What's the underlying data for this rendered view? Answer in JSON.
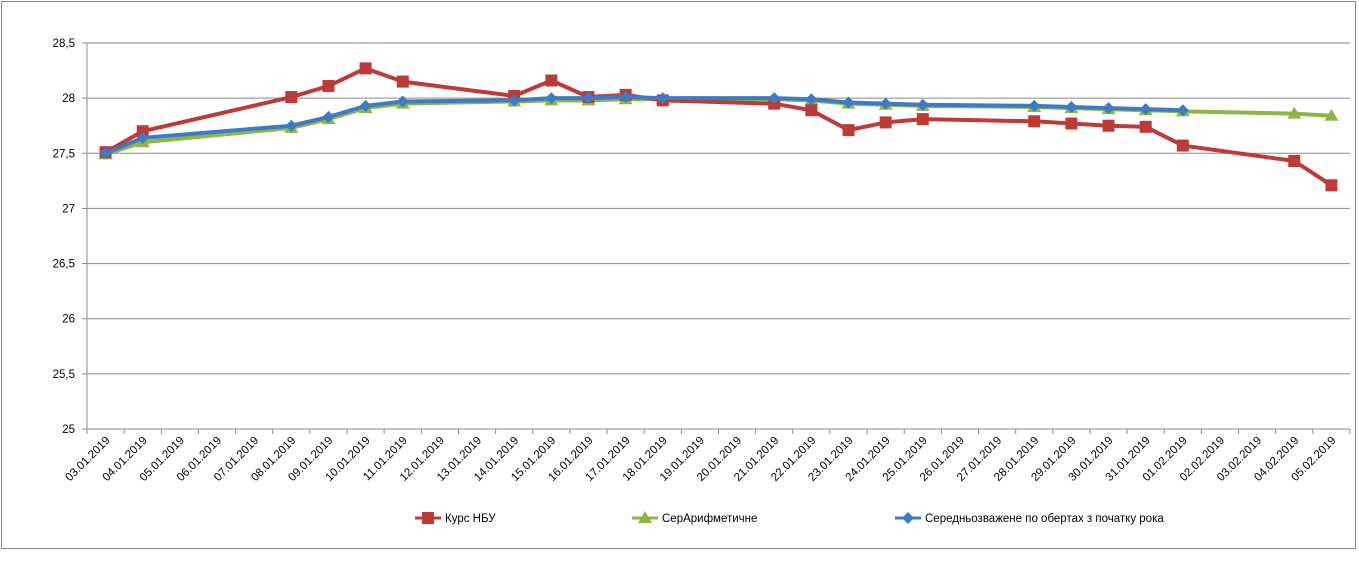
{
  "chart_data": {
    "type": "line",
    "title": "",
    "xlabel": "",
    "ylabel": "",
    "ylim": [
      25,
      28.5
    ],
    "yticks": [
      "25",
      "25,5",
      "26",
      "26,5",
      "27",
      "27,5",
      "28",
      "28,5"
    ],
    "ytick_values": [
      25,
      25.5,
      26,
      26.5,
      27,
      27.5,
      28,
      28.5
    ],
    "grid": true,
    "legend_position": "bottom",
    "categories": [
      "03.01.2019",
      "04.01.2019",
      "05.01.2019",
      "06.01.2019",
      "07.01.2019",
      "08.01.2019",
      "09.01.2019",
      "10.01.2019",
      "11.01.2019",
      "12.01.2019",
      "13.01.2019",
      "14.01.2019",
      "15.01.2019",
      "16.01.2019",
      "17.01.2019",
      "18.01.2019",
      "19.01.2019",
      "20.01.2019",
      "21.01.2019",
      "22.01.2019",
      "23.01.2019",
      "24.01.2019",
      "25.01.2019",
      "26.01.2019",
      "27.01.2019",
      "28.01.2019",
      "29.01.2019",
      "30.01.2019",
      "31.01.2019",
      "01.02.2019",
      "02.02.2019",
      "03.02.2019",
      "04.02.2019",
      "05.02.2019"
    ],
    "series": [
      {
        "name": "Курс НБУ",
        "color": "#be3a36",
        "marker": "square",
        "values": [
          27.51,
          27.7,
          null,
          null,
          null,
          28.01,
          28.11,
          28.27,
          28.15,
          null,
          null,
          28.02,
          28.16,
          28.01,
          28.03,
          27.98,
          null,
          null,
          27.95,
          27.89,
          27.71,
          27.78,
          27.81,
          null,
          null,
          27.79,
          27.77,
          27.75,
          27.74,
          27.57,
          null,
          null,
          27.43,
          27.21
        ]
      },
      {
        "name": "СерАрифметичне",
        "color": "#8db644",
        "marker": "triangle",
        "values": [
          27.49,
          27.6,
          null,
          null,
          null,
          27.73,
          27.81,
          27.91,
          27.95,
          null,
          null,
          27.97,
          27.98,
          27.98,
          27.99,
          27.99,
          null,
          null,
          27.99,
          27.98,
          27.95,
          27.94,
          27.93,
          null,
          null,
          27.92,
          27.91,
          27.9,
          27.89,
          27.88,
          null,
          null,
          27.86,
          27.84
        ]
      },
      {
        "name": "Середньозважене по обертах з початку рока",
        "color": "#3d7cc4",
        "marker": "diamond",
        "values": [
          27.5,
          27.64,
          null,
          null,
          null,
          27.75,
          27.83,
          27.93,
          27.97,
          null,
          null,
          27.98,
          28.0,
          28.0,
          28.01,
          28.0,
          null,
          null,
          28.0,
          27.99,
          27.96,
          27.95,
          27.94,
          null,
          null,
          27.93,
          27.92,
          27.91,
          27.9,
          27.89,
          null,
          null,
          null,
          null
        ]
      }
    ]
  }
}
